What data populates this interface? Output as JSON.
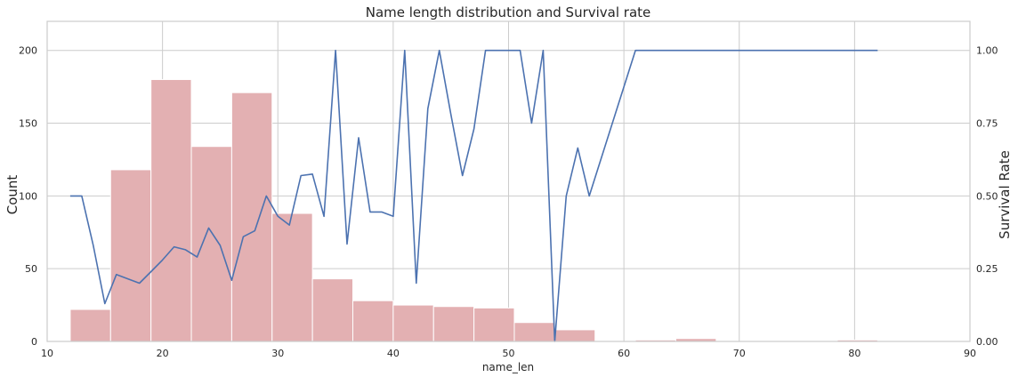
{
  "chart_data": {
    "type": "bar",
    "title": "Name length distribution and Survival rate",
    "xlabel": "name_len",
    "ylabel": "Count",
    "y2label": "Survival Rate",
    "xlim": [
      10,
      90
    ],
    "ylim": [
      0,
      220
    ],
    "y2lim": [
      0,
      1.1
    ],
    "xticks": [
      10,
      20,
      30,
      40,
      50,
      60,
      70,
      80,
      90
    ],
    "yticks": [
      0,
      50,
      100,
      150,
      200
    ],
    "y2ticks": [
      "0.00",
      "0.25",
      "0.50",
      "0.75",
      "1.00"
    ],
    "y2tick_values": [
      0,
      0.25,
      0.5,
      0.75,
      1.0
    ],
    "grid": true,
    "histogram": {
      "name": "Count",
      "color": "#e3b0b2",
      "edge_color": "#ffffff",
      "bin_edges": [
        12,
        15.5,
        19,
        22.5,
        26,
        29.5,
        33,
        36.5,
        40,
        43.5,
        47,
        50.5,
        54,
        57.5,
        61,
        64.5,
        68,
        71.5,
        75,
        78.5,
        82
      ],
      "counts": [
        22,
        118,
        180,
        134,
        171,
        88,
        43,
        28,
        25,
        24,
        23,
        13,
        8,
        0,
        1,
        2,
        0,
        0,
        0,
        1
      ]
    },
    "survival_line": {
      "name": "Survival Rate",
      "color": "#4c72b0",
      "x": [
        12,
        13,
        14,
        15,
        16,
        17,
        18,
        19,
        20,
        21,
        22,
        23,
        24,
        25,
        26,
        27,
        28,
        29,
        30,
        31,
        32,
        33,
        34,
        35,
        36,
        37,
        38,
        39,
        40,
        41,
        42,
        43,
        44,
        45,
        46,
        47,
        48,
        49,
        50,
        51,
        52,
        53,
        54,
        55,
        56,
        57,
        61,
        62,
        63,
        64,
        65,
        67,
        69,
        72,
        82
      ],
      "y": [
        0.5,
        0.5,
        0.33,
        0.13,
        0.23,
        0.215,
        0.2,
        0.24,
        0.28,
        0.325,
        0.315,
        0.29,
        0.39,
        0.33,
        0.21,
        0.36,
        0.38,
        0.5,
        0.43,
        0.4,
        0.57,
        0.575,
        0.43,
        1.0,
        0.335,
        0.7,
        0.445,
        0.445,
        0.43,
        1.0,
        0.2,
        0.8,
        1.0,
        0.78,
        0.57,
        0.73,
        1.0,
        1.0,
        1.0,
        1.0,
        0.75,
        1.0,
        0.0,
        0.5,
        0.665,
        0.5,
        1.0,
        1.0,
        1.0,
        1.0,
        1.0,
        1.0,
        1.0,
        1.0,
        1.0
      ]
    }
  }
}
